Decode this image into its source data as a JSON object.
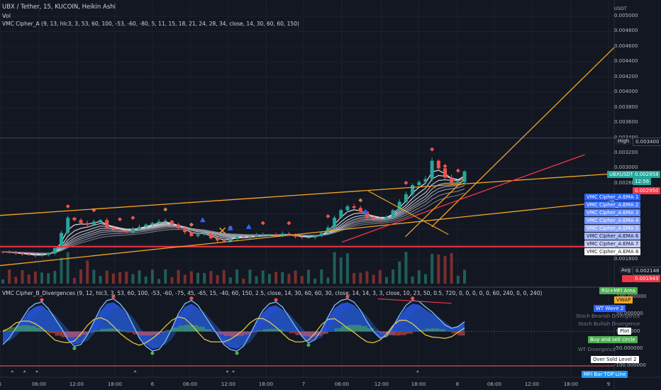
{
  "header": {
    "symbol_line": "UBX / Tether, 15, KUCOIN, Heikin Ashi",
    "vol_label": "Vol",
    "indicator_a": "VMC Cipher_A (9, 13, hlc3, 3, 53, 60, 100, -53, -60, -80, 5, 11, 15, 18, 21, 24, 28, 34, close, 14, 30, 60, 60, 150)",
    "indicator_b": "VMC Cipher_B_Divergences (9, 12, hlc3, 3, 53, 60, 100, -53, -60, -75, 45, -65, 15, -40, 60, 150, 2.5, close, 14, 30, 60, 60, 30, close, 14, 14, 3, 3, close, 10, 23, 50, 0.5, 720, 0, 0, 0, 0, 0, 60, 240, 0, 0, 240)"
  },
  "colors": {
    "background": "#131722",
    "up": "#26a69a",
    "down": "#ef5350",
    "trendline": "#f5a623",
    "red_level": "#f23645",
    "wave_blue": "#2962ff",
    "light_wave": "#7ab8f5"
  },
  "chart_data": [
    {
      "type": "candlestick",
      "title": "UBX / Tether, 15, KUCOIN, Heikin Ashi",
      "yunit": "USDT",
      "ylim": [
        0.0017,
        0.0052
      ],
      "y_ticks": [
        "0.005000",
        "0.004800",
        "0.004600",
        "0.004400",
        "0.004200",
        "0.004000",
        "0.003800",
        "0.003600",
        "0.003400",
        "0.003200",
        "0.003000",
        "0.002800",
        "0.002600",
        "0.002400",
        "0.002200",
        "0.002000",
        "0.001800"
      ],
      "x_ticks": [
        "5",
        "06:00",
        "12:00",
        "18:00",
        "6",
        "06:00",
        "12:00",
        "18:00",
        "7",
        "06:00",
        "12:00",
        "18:00",
        "8",
        "06:00",
        "12:00",
        "18:00",
        "9"
      ],
      "series_close": [
        0.0019,
        0.00189,
        0.00188,
        0.00187,
        0.00186,
        0.00185,
        0.00186,
        0.00188,
        0.00195,
        0.00215,
        0.00235,
        0.00232,
        0.00228,
        0.00226,
        0.0023,
        0.00232,
        0.00222,
        0.00219,
        0.00218,
        0.00216,
        0.0022,
        0.00223,
        0.00226,
        0.00228,
        0.0023,
        0.00231,
        0.00226,
        0.00221,
        0.00216,
        0.00211,
        0.00213,
        0.00214,
        0.00208,
        0.00205,
        0.00204,
        0.00207,
        0.0021,
        0.00209,
        0.0021,
        0.00212,
        0.00213,
        0.00213,
        0.00212,
        0.00214,
        0.00213,
        0.0021,
        0.00209,
        0.00209,
        0.00211,
        0.00215,
        0.00222,
        0.00235,
        0.00245,
        0.0025,
        0.00248,
        0.00243,
        0.00236,
        0.00233,
        0.00232,
        0.00236,
        0.00245,
        0.00256,
        0.00266,
        0.00278,
        0.00282,
        0.00286,
        0.0031,
        0.003,
        0.00288,
        0.00281,
        0.00282,
        0.00296
      ],
      "labels": {
        "high": "High",
        "high_value": "0.003400",
        "last_symbol": "UBXUSDT",
        "last_value": "0.002958",
        "countdown": "12:56",
        "level_value": "0.002950",
        "avg": "Avg",
        "avg_value": "0.002148",
        "low_value": "0.001943"
      },
      "ema_labels": [
        "VMC Cipher_A:EMA 1",
        "VMC Cipher_A:EMA 2",
        "VMC Cipher_A:EMA 3",
        "VMC Cipher_A:EMA 4",
        "VMC Cipher_A:EMA 5",
        "VMC Cipher_A:EMA 6",
        "VMC Cipher_A:EMA 7",
        "VMC Cipher_A:EMA 8"
      ],
      "horizontal_levels": [
        0.0034,
        0.00197
      ],
      "trendlines": [
        {
          "color": "orange",
          "from": [
            0.0,
            0.00238
          ],
          "to": [
            1.0,
            0.00293
          ]
        },
        {
          "color": "orange",
          "from": [
            0.0,
            0.00172
          ],
          "to": [
            1.0,
            0.00257
          ]
        },
        {
          "color": "orange",
          "from": [
            0.703,
            0.00223
          ],
          "to": [
            1.0,
            0.00459
          ]
        },
        {
          "color": "red",
          "from": [
            0.557,
            0.00203
          ],
          "to": [
            0.952,
            0.00318
          ]
        }
      ]
    },
    {
      "type": "area",
      "title": "VMC Cipher_B_Divergences",
      "ylim": [
        -110,
        120
      ],
      "y_ticks": [
        "100.000000",
        "50.000000",
        "0.000000",
        "-50.000000",
        "-100.000000"
      ],
      "wave": [
        -40,
        -20,
        10,
        40,
        70,
        85,
        90,
        70,
        40,
        10,
        -25,
        -45,
        -40,
        -10,
        30,
        70,
        95,
        100,
        85,
        60,
        20,
        -20,
        -45,
        -60,
        -55,
        -30,
        10,
        55,
        85,
        95,
        80,
        50,
        20,
        -10,
        -40,
        -55,
        -60,
        -45,
        -10,
        30,
        65,
        85,
        90,
        75,
        45,
        15,
        -15,
        -35,
        -25,
        5,
        45,
        80,
        95,
        100,
        90,
        65,
        30,
        0,
        -20,
        -15,
        15,
        50,
        80,
        95,
        92,
        75,
        60,
        40,
        20,
        10,
        15,
        30
      ],
      "legend_tags": [
        "RSI+MFI Area",
        "VWAP",
        "WT Wave 2",
        "Stoch Bearish Divergence",
        "Stoch Bullish Divergence",
        "Plot",
        "Buy and sell circle",
        "WT Divergence",
        "Over Sold Level 2",
        "",
        "MFI Bar TOP Line"
      ]
    }
  ]
}
